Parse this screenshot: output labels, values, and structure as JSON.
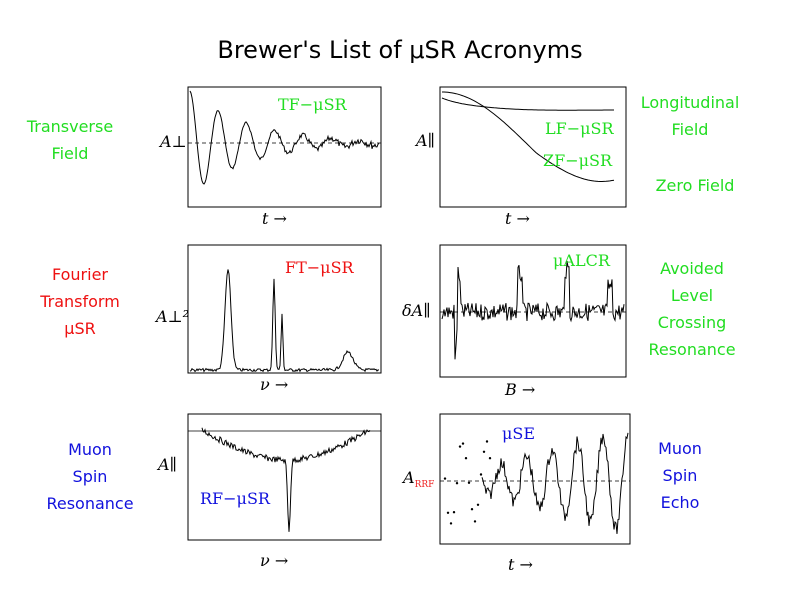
{
  "title": "Brewer's List of μSR Acronyms",
  "colors": {
    "green": "#22dd22",
    "red": "#ee1111",
    "blue": "#1111dd",
    "red_sub": "#ee2222"
  },
  "left_labels": {
    "tf": [
      "Transverse",
      "Field"
    ],
    "ft": [
      "Fourier",
      "Transform",
      "μSR"
    ],
    "rf": [
      "Muon",
      "Spin",
      "Resonance"
    ]
  },
  "right_labels": {
    "lf": [
      "Longitudinal",
      "Field"
    ],
    "zf": [
      "Zero Field"
    ],
    "alcr": [
      "Avoided",
      "Level",
      "Crossing",
      "Resonance"
    ],
    "se": [
      "Muon",
      "Spin",
      "Echo"
    ]
  },
  "chart_data": [
    {
      "id": "tf",
      "type": "line",
      "title": "TF−μSR",
      "ylabel": "A⊥",
      "xlabel": "t →",
      "series": [
        {
          "values": "damped oscillation"
        }
      ]
    },
    {
      "id": "lf",
      "type": "line",
      "title": "LF−μSR",
      "title2": "ZF−μSR",
      "ylabel": "A∥",
      "xlabel": "t →"
    },
    {
      "id": "ft",
      "type": "line",
      "title": "FT−μSR",
      "ylabel": "A⊥²",
      "xlabel": "ν →"
    },
    {
      "id": "alcr",
      "type": "line",
      "title": "μALCR",
      "ylabel": "δA∥",
      "xlabel": "B →"
    },
    {
      "id": "rf",
      "type": "line",
      "title": "RF−μSR",
      "ylabel": "A∥",
      "xlabel": "ν →"
    },
    {
      "id": "se",
      "type": "scatter",
      "title": "μSE",
      "ylabel": "A",
      "ylabel_sub": "RRF",
      "xlabel": "t →"
    }
  ]
}
